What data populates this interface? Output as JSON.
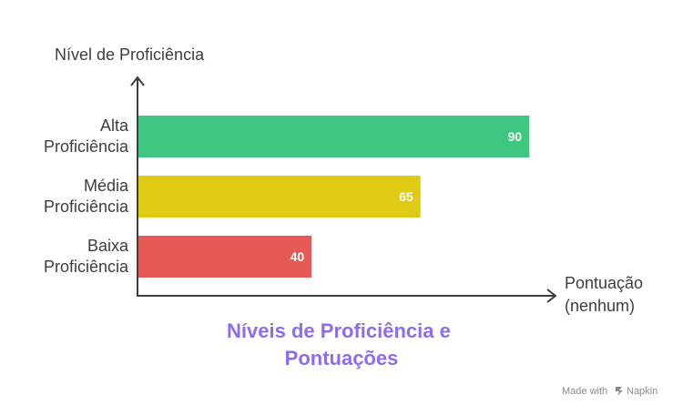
{
  "chart_data": {
    "type": "bar",
    "orientation": "horizontal",
    "categories": [
      [
        "Alta",
        "Proficiência"
      ],
      [
        "Média",
        "Proficiência"
      ],
      [
        "Baixa",
        "Proficiência"
      ]
    ],
    "values": [
      90,
      65,
      40
    ],
    "xlim": [
      0,
      100
    ],
    "colors": [
      "#3ec682",
      "#dfcb14",
      "#e55a54"
    ],
    "ylabel": "Nível de Proficiência",
    "xlabel": [
      "Pontuação",
      "(nenhum)"
    ],
    "title": [
      "Níveis de Proficiência e",
      "Pontuações"
    ],
    "title_color": "#8d6cf0",
    "grid": false,
    "legend": "none"
  },
  "footer": {
    "made_with": "Made with",
    "brand": "Napkin",
    "brand_icon": "napkin-logo-icon"
  }
}
